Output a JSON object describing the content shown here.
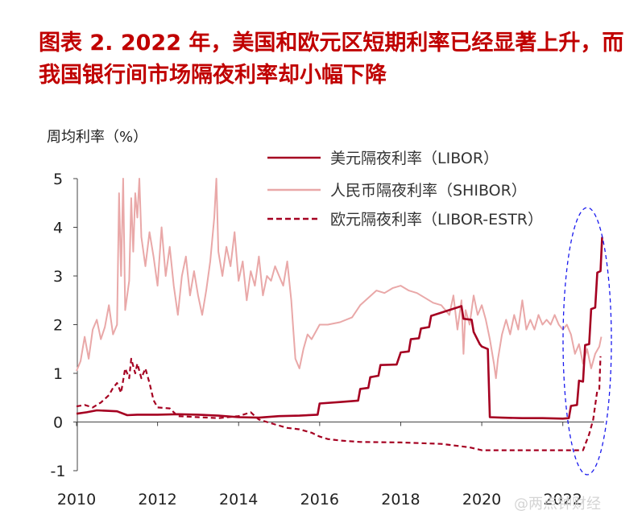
{
  "title": "图表 2.  2022 年，美国和欧元区短期利率已经显著上升，而我国银行间市场隔夜利率却小幅下降",
  "watermark": "@两点钟财经",
  "chart_data": {
    "type": "line",
    "ylabel": "周均利率（%）",
    "xlim": [
      2010,
      2023
    ],
    "ylim": [
      -1,
      5
    ],
    "x_ticks": [
      "2010",
      "2012",
      "2014",
      "2016",
      "2018",
      "2020",
      "2022"
    ],
    "y_ticks": [
      "-1",
      "0",
      "1",
      "2",
      "3",
      "4",
      "5"
    ],
    "legend_position": "top-right",
    "grid": false,
    "series": [
      {
        "name": "美元隔夜利率（LIBOR）",
        "color": "#a50021",
        "style": "solid",
        "points": [
          [
            2010.0,
            0.17
          ],
          [
            2010.25,
            0.2
          ],
          [
            2010.5,
            0.24
          ],
          [
            2010.75,
            0.23
          ],
          [
            2011.0,
            0.22
          ],
          [
            2011.25,
            0.14
          ],
          [
            2011.5,
            0.15
          ],
          [
            2012.0,
            0.15
          ],
          [
            2012.5,
            0.16
          ],
          [
            2013.0,
            0.15
          ],
          [
            2013.5,
            0.13
          ],
          [
            2014.0,
            0.1
          ],
          [
            2014.5,
            0.09
          ],
          [
            2015.0,
            0.12
          ],
          [
            2015.5,
            0.13
          ],
          [
            2015.95,
            0.15
          ],
          [
            2016.0,
            0.38
          ],
          [
            2016.5,
            0.41
          ],
          [
            2016.95,
            0.44
          ],
          [
            2017.0,
            0.68
          ],
          [
            2017.2,
            0.7
          ],
          [
            2017.25,
            0.92
          ],
          [
            2017.45,
            0.95
          ],
          [
            2017.5,
            1.17
          ],
          [
            2017.9,
            1.18
          ],
          [
            2018.0,
            1.43
          ],
          [
            2018.2,
            1.45
          ],
          [
            2018.25,
            1.7
          ],
          [
            2018.45,
            1.72
          ],
          [
            2018.5,
            1.92
          ],
          [
            2018.7,
            1.95
          ],
          [
            2018.75,
            2.18
          ],
          [
            2019.5,
            2.38
          ],
          [
            2019.55,
            2.12
          ],
          [
            2019.75,
            2.1
          ],
          [
            2019.8,
            1.85
          ],
          [
            2019.95,
            1.6
          ],
          [
            2020.0,
            1.55
          ],
          [
            2020.15,
            1.5
          ],
          [
            2020.2,
            0.1
          ],
          [
            2020.5,
            0.09
          ],
          [
            2021.0,
            0.08
          ],
          [
            2021.5,
            0.08
          ],
          [
            2022.0,
            0.07
          ],
          [
            2022.15,
            0.08
          ],
          [
            2022.2,
            0.33
          ],
          [
            2022.35,
            0.35
          ],
          [
            2022.4,
            0.85
          ],
          [
            2022.5,
            0.83
          ],
          [
            2022.55,
            1.58
          ],
          [
            2022.65,
            1.6
          ],
          [
            2022.7,
            2.32
          ],
          [
            2022.8,
            2.35
          ],
          [
            2022.85,
            3.07
          ],
          [
            2022.93,
            3.1
          ],
          [
            2022.97,
            3.8
          ]
        ]
      },
      {
        "name": "人民币隔夜利率（SHIBOR）",
        "color": "#e9a8a8",
        "style": "solid",
        "points": [
          [
            2010.0,
            1.05
          ],
          [
            2010.1,
            1.25
          ],
          [
            2010.2,
            1.75
          ],
          [
            2010.3,
            1.3
          ],
          [
            2010.4,
            1.9
          ],
          [
            2010.5,
            2.1
          ],
          [
            2010.6,
            1.7
          ],
          [
            2010.7,
            1.95
          ],
          [
            2010.8,
            2.4
          ],
          [
            2010.9,
            1.8
          ],
          [
            2011.0,
            2.0
          ],
          [
            2011.05,
            4.7
          ],
          [
            2011.1,
            3.0
          ],
          [
            2011.15,
            5.0
          ],
          [
            2011.2,
            2.3
          ],
          [
            2011.3,
            2.9
          ],
          [
            2011.35,
            4.6
          ],
          [
            2011.4,
            3.5
          ],
          [
            2011.45,
            4.7
          ],
          [
            2011.5,
            4.2
          ],
          [
            2011.55,
            5.0
          ],
          [
            2011.6,
            3.8
          ],
          [
            2011.7,
            3.2
          ],
          [
            2011.8,
            3.9
          ],
          [
            2011.9,
            3.4
          ],
          [
            2012.0,
            2.8
          ],
          [
            2012.1,
            4.0
          ],
          [
            2012.2,
            3.0
          ],
          [
            2012.3,
            3.6
          ],
          [
            2012.4,
            2.8
          ],
          [
            2012.5,
            2.2
          ],
          [
            2012.6,
            3.0
          ],
          [
            2012.7,
            3.4
          ],
          [
            2012.8,
            2.6
          ],
          [
            2012.9,
            3.1
          ],
          [
            2013.0,
            2.6
          ],
          [
            2013.1,
            2.2
          ],
          [
            2013.2,
            2.7
          ],
          [
            2013.3,
            3.3
          ],
          [
            2013.4,
            4.2
          ],
          [
            2013.45,
            5.0
          ],
          [
            2013.5,
            3.5
          ],
          [
            2013.6,
            3.0
          ],
          [
            2013.7,
            3.6
          ],
          [
            2013.8,
            3.2
          ],
          [
            2013.9,
            3.9
          ],
          [
            2014.0,
            2.9
          ],
          [
            2014.1,
            3.3
          ],
          [
            2014.2,
            2.5
          ],
          [
            2014.3,
            3.1
          ],
          [
            2014.4,
            2.8
          ],
          [
            2014.5,
            3.4
          ],
          [
            2014.6,
            2.6
          ],
          [
            2014.7,
            3.0
          ],
          [
            2014.8,
            2.9
          ],
          [
            2014.9,
            3.2
          ],
          [
            2015.0,
            3.0
          ],
          [
            2015.1,
            2.8
          ],
          [
            2015.2,
            3.3
          ],
          [
            2015.3,
            2.5
          ],
          [
            2015.35,
            1.9
          ],
          [
            2015.4,
            1.3
          ],
          [
            2015.5,
            1.1
          ],
          [
            2015.6,
            1.5
          ],
          [
            2015.7,
            1.8
          ],
          [
            2015.8,
            1.7
          ],
          [
            2015.9,
            1.85
          ],
          [
            2016.0,
            2.0
          ],
          [
            2016.2,
            2.0
          ],
          [
            2016.5,
            2.05
          ],
          [
            2016.8,
            2.15
          ],
          [
            2017.0,
            2.4
          ],
          [
            2017.2,
            2.55
          ],
          [
            2017.4,
            2.7
          ],
          [
            2017.6,
            2.65
          ],
          [
            2017.8,
            2.75
          ],
          [
            2018.0,
            2.8
          ],
          [
            2018.2,
            2.7
          ],
          [
            2018.4,
            2.65
          ],
          [
            2018.6,
            2.55
          ],
          [
            2018.8,
            2.45
          ],
          [
            2019.0,
            2.4
          ],
          [
            2019.2,
            2.2
          ],
          [
            2019.3,
            2.6
          ],
          [
            2019.4,
            1.9
          ],
          [
            2019.5,
            2.5
          ],
          [
            2019.55,
            1.4
          ],
          [
            2019.6,
            2.3
          ],
          [
            2019.7,
            2.0
          ],
          [
            2019.8,
            2.6
          ],
          [
            2019.9,
            2.2
          ],
          [
            2020.0,
            2.4
          ],
          [
            2020.1,
            2.1
          ],
          [
            2020.2,
            1.7
          ],
          [
            2020.3,
            1.2
          ],
          [
            2020.35,
            0.9
          ],
          [
            2020.4,
            1.3
          ],
          [
            2020.5,
            1.8
          ],
          [
            2020.6,
            2.1
          ],
          [
            2020.7,
            1.8
          ],
          [
            2020.8,
            2.2
          ],
          [
            2020.9,
            1.9
          ],
          [
            2021.0,
            2.5
          ],
          [
            2021.1,
            1.9
          ],
          [
            2021.2,
            2.1
          ],
          [
            2021.3,
            1.9
          ],
          [
            2021.4,
            2.2
          ],
          [
            2021.5,
            2.0
          ],
          [
            2021.6,
            2.1
          ],
          [
            2021.7,
            2.0
          ],
          [
            2021.8,
            2.2
          ],
          [
            2021.9,
            2.0
          ],
          [
            2022.0,
            1.9
          ],
          [
            2022.1,
            2.0
          ],
          [
            2022.2,
            1.8
          ],
          [
            2022.3,
            1.4
          ],
          [
            2022.4,
            1.6
          ],
          [
            2022.5,
            1.2
          ],
          [
            2022.6,
            1.5
          ],
          [
            2022.7,
            1.1
          ],
          [
            2022.8,
            1.4
          ],
          [
            2022.9,
            1.55
          ],
          [
            2022.95,
            1.75
          ]
        ]
      },
      {
        "name": "欧元隔夜利率（LIBOR-ESTR）",
        "color": "#a50021",
        "style": "dashed",
        "points": [
          [
            2010.0,
            0.32
          ],
          [
            2010.2,
            0.35
          ],
          [
            2010.4,
            0.3
          ],
          [
            2010.6,
            0.4
          ],
          [
            2010.8,
            0.55
          ],
          [
            2010.9,
            0.7
          ],
          [
            2011.0,
            0.8
          ],
          [
            2011.1,
            0.6
          ],
          [
            2011.2,
            1.1
          ],
          [
            2011.3,
            0.9
          ],
          [
            2011.35,
            1.3
          ],
          [
            2011.45,
            1.0
          ],
          [
            2011.5,
            1.2
          ],
          [
            2011.6,
            0.9
          ],
          [
            2011.7,
            1.1
          ],
          [
            2011.8,
            0.8
          ],
          [
            2011.9,
            0.45
          ],
          [
            2012.0,
            0.3
          ],
          [
            2012.3,
            0.28
          ],
          [
            2012.5,
            0.12
          ],
          [
            2013.0,
            0.1
          ],
          [
            2013.5,
            0.08
          ],
          [
            2014.0,
            0.12
          ],
          [
            2014.3,
            0.2
          ],
          [
            2014.5,
            0.05
          ],
          [
            2014.7,
            0.0
          ],
          [
            2014.9,
            -0.05
          ],
          [
            2015.2,
            -0.12
          ],
          [
            2015.5,
            -0.15
          ],
          [
            2015.8,
            -0.22
          ],
          [
            2016.0,
            -0.3
          ],
          [
            2016.2,
            -0.35
          ],
          [
            2016.5,
            -0.38
          ],
          [
            2017.0,
            -0.41
          ],
          [
            2018.0,
            -0.42
          ],
          [
            2019.0,
            -0.45
          ],
          [
            2019.7,
            -0.52
          ],
          [
            2020.0,
            -0.58
          ],
          [
            2021.0,
            -0.58
          ],
          [
            2022.0,
            -0.58
          ],
          [
            2022.5,
            -0.58
          ],
          [
            2022.65,
            -0.25
          ],
          [
            2022.75,
            0.05
          ],
          [
            2022.85,
            0.65
          ],
          [
            2022.9,
            0.68
          ],
          [
            2022.93,
            1.35
          ]
        ]
      }
    ]
  }
}
